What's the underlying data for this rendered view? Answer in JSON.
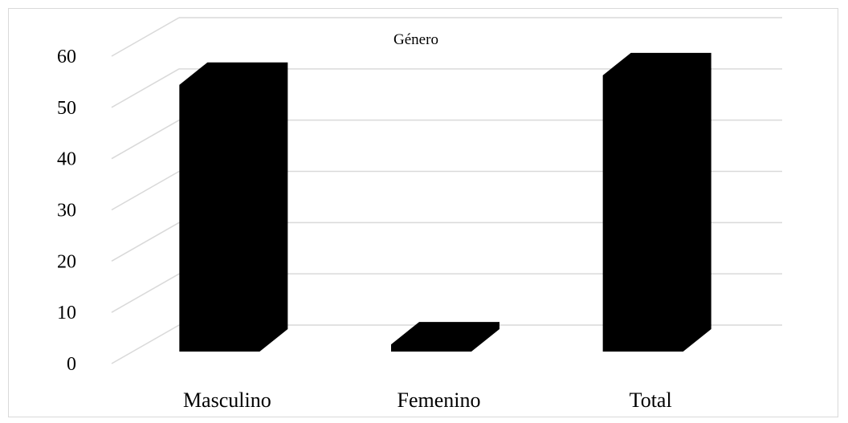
{
  "chart_data": {
    "type": "bar",
    "title": "Género",
    "categories": [
      "Masculino",
      "Femenino",
      "Total"
    ],
    "values": [
      56,
      1.5,
      58
    ],
    "ylim": [
      0,
      60
    ],
    "yticks": [
      0,
      10,
      20,
      30,
      40,
      50,
      60
    ],
    "grid": true,
    "style": "3d-column",
    "colors": {
      "bar": "#000000",
      "grid": "#d9d9d9",
      "border": "#d9d9d9"
    }
  }
}
